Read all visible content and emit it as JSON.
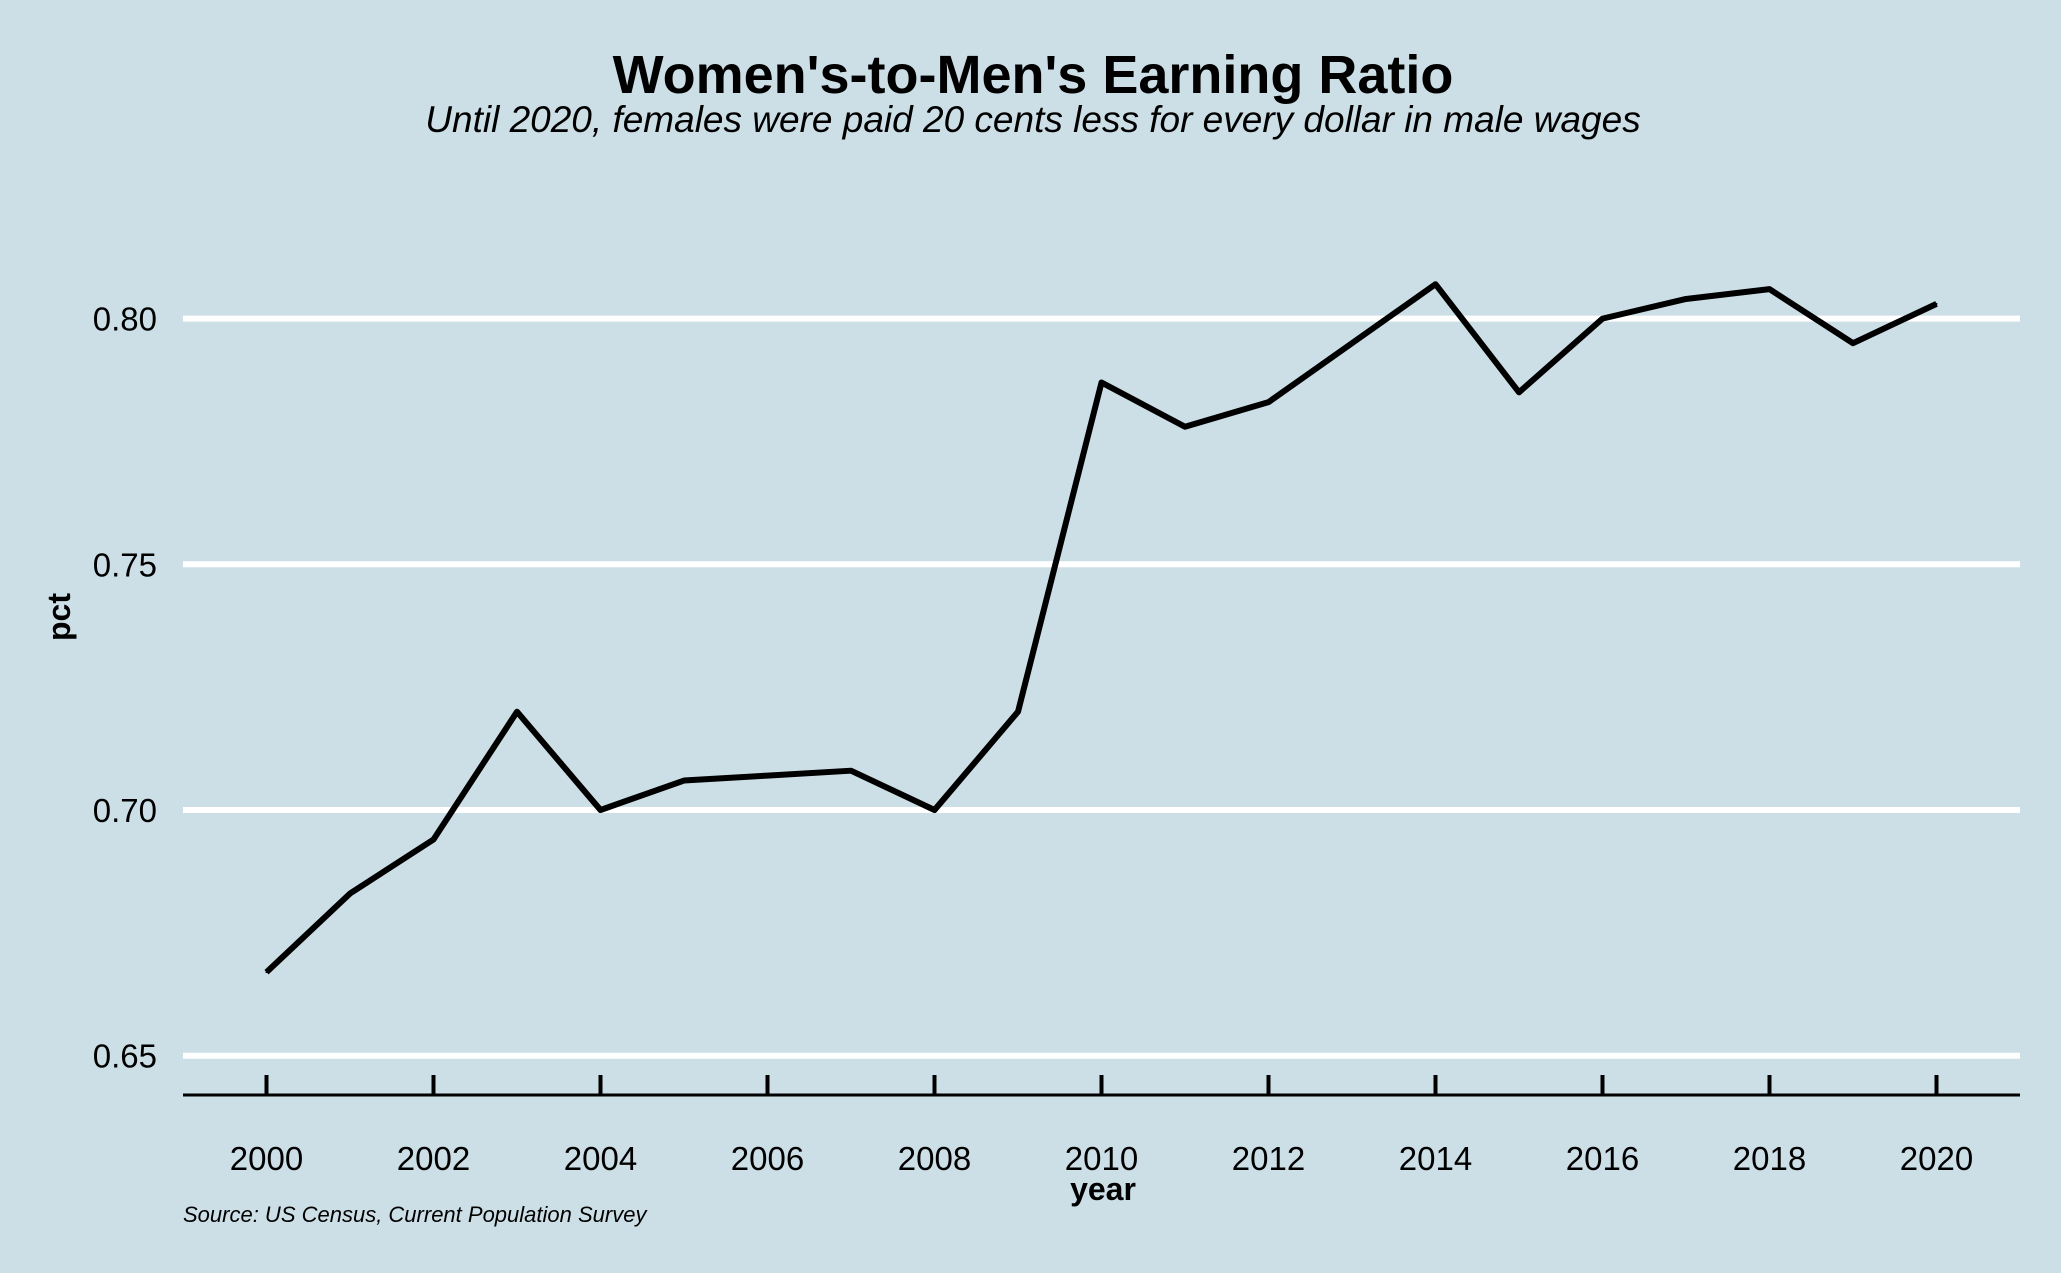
{
  "chart_data": {
    "type": "line",
    "title": "Women's-to-Men's Earning Ratio",
    "subtitle": "Until 2020, females were paid 20 cents less for every dollar in male wages",
    "caption": "Source: US Census, Current Population Survey",
    "xlabel": "year",
    "ylabel": "pct",
    "x": [
      2000,
      2001,
      2002,
      2003,
      2004,
      2005,
      2006,
      2007,
      2008,
      2009,
      2010,
      2011,
      2012,
      2013,
      2014,
      2015,
      2016,
      2017,
      2018,
      2019,
      2020
    ],
    "series": [
      {
        "name": "pct",
        "values": [
          0.667,
          0.683,
          0.694,
          0.72,
          0.7,
          0.706,
          0.707,
          0.708,
          0.7,
          0.72,
          0.787,
          0.778,
          0.783,
          0.795,
          0.807,
          0.785,
          0.8,
          0.804,
          0.806,
          0.795,
          0.803
        ]
      }
    ],
    "xlim": [
      1999,
      2021
    ],
    "ylim": [
      0.642,
      0.816
    ],
    "xticks": [
      "2000",
      "2002",
      "2004",
      "2006",
      "2008",
      "2010",
      "2012",
      "2014",
      "2016",
      "2018",
      "2020"
    ],
    "yticks": [
      "0.65",
      "0.70",
      "0.75",
      "0.80"
    ],
    "grid": "horizontal",
    "colors": {
      "background": "#cddfe6",
      "line": "#000000",
      "grid": "#ffffff"
    }
  }
}
